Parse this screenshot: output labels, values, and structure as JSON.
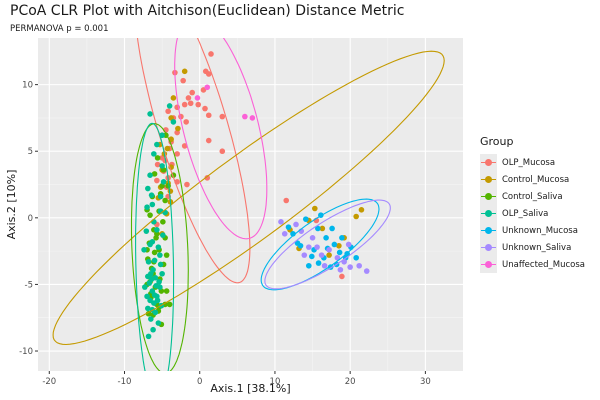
{
  "chart_data": {
    "type": "scatter",
    "title": "PCoA CLR Plot with Aitchison(Euclidean) Distance Metric",
    "subtitle": "PERMANOVA p = 0.001",
    "xlabel": "Axis.1   [38.1%]",
    "ylabel": "Axis.2   [10%]",
    "xlim": [
      -21.5,
      35
    ],
    "ylim": [
      -11.5,
      13.5
    ],
    "xticks": [
      -20,
      -10,
      0,
      10,
      20,
      30
    ],
    "yticks": [
      -10,
      -5,
      0,
      5,
      10
    ],
    "legend_title": "Group",
    "legend_position": "right",
    "series": [
      {
        "name": "OLP_Mucosa",
        "color": "#F8766D",
        "ellipse": {
          "center": [
            -1,
            7.0
          ],
          "rx": 13.5,
          "ry": 4.2,
          "angle_deg": -60
        },
        "points": [
          [
            1.5,
            12.3
          ],
          [
            0.8,
            11.0
          ],
          [
            1.2,
            10.8
          ],
          [
            -3.3,
            10.9
          ],
          [
            -2.2,
            10.3
          ],
          [
            -1.0,
            9.4
          ],
          [
            -1.5,
            9.0
          ],
          [
            0.5,
            9.6
          ],
          [
            -2.0,
            8.5
          ],
          [
            -1.2,
            8.6
          ],
          [
            -0.2,
            8.5
          ],
          [
            0.7,
            8.2
          ],
          [
            1.2,
            7.7
          ],
          [
            -3.0,
            8.3
          ],
          [
            -4.2,
            8.0
          ],
          [
            -3.5,
            7.5
          ],
          [
            -2.5,
            7.6
          ],
          [
            -1.8,
            7.2
          ],
          [
            -4.5,
            6.6
          ],
          [
            -5.0,
            6.2
          ],
          [
            -3.0,
            6.4
          ],
          [
            -2.0,
            5.4
          ],
          [
            -3.8,
            5.7
          ],
          [
            -4.0,
            5.2
          ],
          [
            -3.0,
            4.8
          ],
          [
            -3.7,
            4.0
          ],
          [
            -4.6,
            4.3
          ],
          [
            -5.6,
            4.0
          ],
          [
            -4.8,
            3.5
          ],
          [
            -4.2,
            3.0
          ],
          [
            -5.7,
            2.8
          ],
          [
            -4.4,
            2.3
          ],
          [
            1.2,
            5.8
          ],
          [
            3.0,
            5.0
          ],
          [
            1.0,
            3.0
          ],
          [
            -5.7,
            -0.5
          ],
          [
            11.5,
            1.3
          ],
          [
            15.5,
            -0.2
          ],
          [
            18.9,
            -4.4
          ],
          [
            -3.0,
            2.7
          ],
          [
            3.0,
            7.6
          ],
          [
            -1.7,
            2.5
          ],
          [
            -4.2,
            1.6
          ],
          [
            -5.0,
            4.5
          ]
        ]
      },
      {
        "name": "Control_Mucosa",
        "color": "#C49A00",
        "ellipse": {
          "center": [
            6.5,
            1.5
          ],
          "rx": 28.0,
          "ry": 3.6,
          "angle_deg": 22
        },
        "points": [
          [
            -2.0,
            11.0
          ],
          [
            -3.5,
            9.0
          ],
          [
            -3.8,
            7.5
          ],
          [
            -2.9,
            6.7
          ],
          [
            -3.8,
            5.9
          ],
          [
            -4.7,
            4.8
          ],
          [
            -5.3,
            5.5
          ],
          [
            -4.3,
            5.2
          ],
          [
            -5.0,
            3.6
          ],
          [
            -3.8,
            3.8
          ],
          [
            -4.2,
            2.6
          ],
          [
            -5.2,
            2.3
          ],
          [
            -3.9,
            2.0
          ],
          [
            -5.5,
            1.5
          ],
          [
            -3.9,
            1.2
          ],
          [
            15.3,
            0.7
          ],
          [
            14.5,
            -0.2
          ],
          [
            16.3,
            -0.8
          ],
          [
            18.5,
            -2.1
          ],
          [
            19.2,
            -1.5
          ],
          [
            20.8,
            0.1
          ],
          [
            21.5,
            0.6
          ],
          [
            17.2,
            -2.8
          ],
          [
            12.0,
            -0.9
          ],
          [
            13.2,
            -2.3
          ],
          [
            -4.4,
            0.3
          ],
          [
            -5.0,
            -1.2
          ]
        ]
      },
      {
        "name": "Control_Saliva",
        "color": "#53B400",
        "ellipse": {
          "center": [
            -5.3,
            -2.3
          ],
          "rx": 3.7,
          "ry": 9.4,
          "angle_deg": 5
        },
        "points": [
          [
            -5.6,
            4.5
          ],
          [
            -4.5,
            6.2
          ],
          [
            -4.8,
            3.6
          ],
          [
            -6.0,
            3.3
          ],
          [
            -5.0,
            2.4
          ],
          [
            -4.6,
            1.3
          ],
          [
            -6.3,
            1.6
          ],
          [
            -5.4,
            0.5
          ],
          [
            -6.6,
            0.2
          ],
          [
            -4.9,
            -0.3
          ],
          [
            -6.1,
            -0.9
          ],
          [
            -4.6,
            -1.5
          ],
          [
            -6.7,
            -1.9
          ],
          [
            -5.4,
            -2.4
          ],
          [
            -6.9,
            -3.1
          ],
          [
            -4.8,
            -3.5
          ],
          [
            -6.2,
            -4.2
          ],
          [
            -5.3,
            -4.6
          ],
          [
            -7.0,
            -5.0
          ],
          [
            -5.1,
            -5.5
          ],
          [
            -6.5,
            -6.0
          ],
          [
            -5.7,
            -6.5
          ],
          [
            -4.6,
            -6.5
          ],
          [
            -6.2,
            -7.3
          ],
          [
            -5.1,
            -8.0
          ],
          [
            -7.0,
            -2.4
          ],
          [
            -4.4,
            -2.8
          ],
          [
            -6.4,
            -3.8
          ],
          [
            -5.8,
            -1.5
          ],
          [
            -4.4,
            -5.5
          ],
          [
            -6.8,
            -7.2
          ],
          [
            -4.0,
            -6.5
          ],
          [
            -5.7,
            -1.2
          ],
          [
            -5.9,
            -5.2
          ],
          [
            -6.6,
            -4.8
          ],
          [
            -5.4,
            -6.7
          ],
          [
            -6.1,
            -3.3
          ],
          [
            -7.0,
            0.6
          ],
          [
            -5.2,
            1.8
          ],
          [
            -4.2,
            2.4
          ],
          [
            -3.5,
            3.2
          ],
          [
            -6.5,
            -5.7
          ],
          [
            -5.5,
            -7.0
          ],
          [
            -6.0,
            -2.6
          ]
        ]
      },
      {
        "name": "OLP_Saliva",
        "color": "#00C094",
        "ellipse": {
          "center": [
            -6.0,
            -3.3
          ],
          "rx": 2.5,
          "ry": 10.4,
          "angle_deg": 2
        },
        "points": [
          [
            -4.0,
            8.4
          ],
          [
            -3.5,
            7.2
          ],
          [
            -5.0,
            6.2
          ],
          [
            -6.6,
            7.8
          ],
          [
            -5.7,
            5.5
          ],
          [
            -6.1,
            4.8
          ],
          [
            -5.0,
            3.9
          ],
          [
            -6.6,
            3.2
          ],
          [
            -4.8,
            2.7
          ],
          [
            -6.4,
            1.7
          ],
          [
            -7.0,
            0.8
          ],
          [
            -5.2,
            0.5
          ],
          [
            -6.1,
            -0.3
          ],
          [
            -7.1,
            -1.0
          ],
          [
            -4.9,
            -1.3
          ],
          [
            -6.3,
            -1.8
          ],
          [
            -5.5,
            -2.2
          ],
          [
            -7.4,
            -2.4
          ],
          [
            -6.8,
            -3.3
          ],
          [
            -5.2,
            -3.5
          ],
          [
            -6.2,
            -3.9
          ],
          [
            -5.9,
            -4.5
          ],
          [
            -6.7,
            -4.9
          ],
          [
            -5.3,
            -5.2
          ],
          [
            -6.3,
            -5.5
          ],
          [
            -5.7,
            -5.9
          ],
          [
            -7.0,
            -5.9
          ],
          [
            -6.1,
            -6.4
          ],
          [
            -5.1,
            -6.6
          ],
          [
            -6.9,
            -6.8
          ],
          [
            -5.9,
            -7.1
          ],
          [
            -6.5,
            -7.6
          ],
          [
            -5.5,
            -7.9
          ],
          [
            -6.2,
            -8.4
          ],
          [
            -6.8,
            -8.9
          ],
          [
            -6.0,
            -3.2
          ],
          [
            -5.0,
            -4.2
          ],
          [
            -6.5,
            -4.2
          ],
          [
            -5.6,
            -6.2
          ],
          [
            -6.3,
            -6.9
          ],
          [
            -7.3,
            -5.2
          ],
          [
            -5.8,
            -5.1
          ],
          [
            -6.4,
            -4.6
          ],
          [
            -5.4,
            -4.8
          ],
          [
            -6.9,
            -4.4
          ],
          [
            -6.0,
            -5.8
          ],
          [
            -5.3,
            -2.8
          ],
          [
            -6.6,
            -2.0
          ],
          [
            -5.7,
            -0.9
          ],
          [
            -4.6,
            0.4
          ],
          [
            -6.3,
            1.0
          ],
          [
            -5.2,
            1.6
          ],
          [
            -6.9,
            2.2
          ],
          [
            -6.6,
            -6.2
          ]
        ]
      },
      {
        "name": "Unknown_Mucosa",
        "color": "#00B6EB",
        "ellipse": {
          "center": [
            16.0,
            -2.0
          ],
          "rx": 8.3,
          "ry": 2.0,
          "angle_deg": 20
        },
        "points": [
          [
            11.8,
            -0.7
          ],
          [
            13.0,
            -1.9
          ],
          [
            14.1,
            -0.1
          ],
          [
            15.7,
            -0.8
          ],
          [
            16.8,
            -1.5
          ],
          [
            17.9,
            -2.0
          ],
          [
            18.6,
            -2.6
          ],
          [
            19.4,
            -3.0
          ],
          [
            20.1,
            -2.2
          ],
          [
            14.9,
            -2.9
          ],
          [
            13.4,
            -2.1
          ],
          [
            12.4,
            -1.2
          ],
          [
            15.8,
            -3.4
          ],
          [
            17.4,
            -3.7
          ],
          [
            18.9,
            -1.5
          ],
          [
            16.1,
            0.2
          ],
          [
            17.6,
            -0.8
          ],
          [
            19.6,
            -2.7
          ],
          [
            14.5,
            -3.6
          ],
          [
            20.8,
            -3.0
          ],
          [
            15.2,
            -2.4
          ],
          [
            17.0,
            -2.3
          ],
          [
            18.2,
            -3.5
          ],
          [
            16.5,
            -3.0
          ]
        ]
      },
      {
        "name": "Unknown_Saliva",
        "color": "#A58AFF",
        "ellipse": {
          "center": [
            17.0,
            -2.0
          ],
          "rx": 8.8,
          "ry": 1.8,
          "angle_deg": 19
        },
        "points": [
          [
            10.8,
            -0.3
          ],
          [
            11.3,
            -1.2
          ],
          [
            12.8,
            -0.5
          ],
          [
            13.5,
            -1.0
          ],
          [
            14.5,
            -2.2
          ],
          [
            15.0,
            -1.5
          ],
          [
            16.2,
            -2.8
          ],
          [
            17.2,
            -2.4
          ],
          [
            18.3,
            -3.0
          ],
          [
            19.2,
            -3.3
          ],
          [
            20.0,
            -3.7
          ],
          [
            21.2,
            -3.6
          ],
          [
            22.2,
            -4.0
          ],
          [
            19.8,
            -2.0
          ],
          [
            16.6,
            -3.6
          ],
          [
            18.7,
            -3.9
          ],
          [
            15.6,
            -2.2
          ],
          [
            13.9,
            -2.8
          ]
        ]
      },
      {
        "name": "Unaffected_Mucosa",
        "color": "#FB61D7",
        "ellipse": {
          "center": [
            2.8,
            6.8
          ],
          "rx": 9.3,
          "ry": 4.6,
          "angle_deg": -60
        },
        "points": [
          [
            6.0,
            7.6
          ],
          [
            7.0,
            7.5
          ],
          [
            1.0,
            9.8
          ],
          [
            -0.3,
            9.0
          ]
        ]
      }
    ]
  }
}
